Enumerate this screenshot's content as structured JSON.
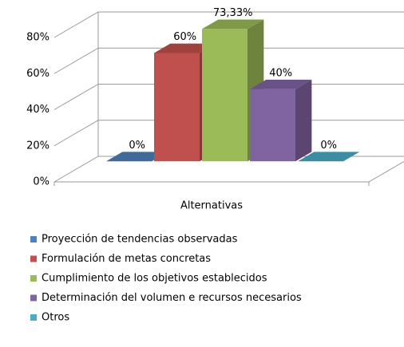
{
  "chart_data": {
    "type": "bar3d",
    "categories": [
      "Alternativas"
    ],
    "series": [
      {
        "name": "Proyección de tendencias observadas",
        "color": "#4f81bd",
        "values": [
          0
        ],
        "value_labels": [
          "0%"
        ]
      },
      {
        "name": "Formulación de metas concretas",
        "color": "#c0504d",
        "values": [
          60
        ],
        "value_labels": [
          "60%"
        ]
      },
      {
        "name": "Cumplimiento de los objetivos establecidos",
        "color": "#9bbb59",
        "values": [
          73.33
        ],
        "value_labels": [
          "73,33%"
        ]
      },
      {
        "name": "Determinación del volumen e recursos necesarios",
        "color": "#8064a2",
        "values": [
          40
        ],
        "value_labels": [
          "40%"
        ]
      },
      {
        "name": "Otros",
        "color": "#4bacc6",
        "values": [
          0
        ],
        "value_labels": [
          "0%"
        ]
      }
    ],
    "ylim": [
      0,
      80
    ],
    "yticks": [
      {
        "value": 0,
        "label": "0%"
      },
      {
        "value": 20,
        "label": "20%"
      },
      {
        "value": 40,
        "label": "40%"
      },
      {
        "value": 60,
        "label": "60%"
      },
      {
        "value": 80,
        "label": "80%"
      }
    ],
    "grid": true,
    "legend": "bottom"
  }
}
